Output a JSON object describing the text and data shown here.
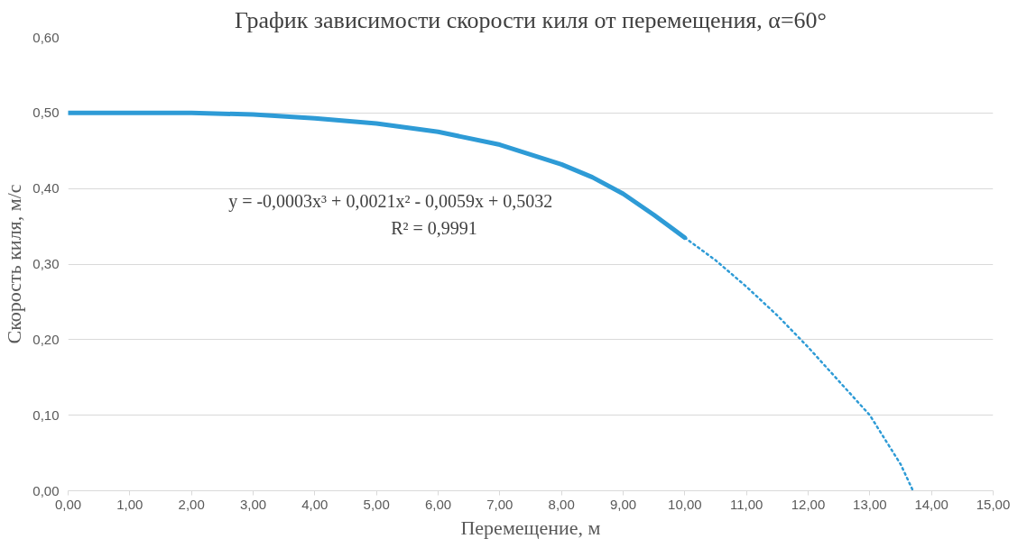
{
  "chart_data": {
    "type": "line",
    "title": "График зависимости скорости киля от перемещения, α=60°",
    "xlabel": "Перемещение, м",
    "ylabel": "Скорость киля, м/с",
    "xlim": [
      0,
      15
    ],
    "ylim": [
      0,
      0.6
    ],
    "xticks": [
      {
        "value": 0,
        "label": "0,00"
      },
      {
        "value": 1,
        "label": "1,00"
      },
      {
        "value": 2,
        "label": "2,00"
      },
      {
        "value": 3,
        "label": "3,00"
      },
      {
        "value": 4,
        "label": "4,00"
      },
      {
        "value": 5,
        "label": "5,00"
      },
      {
        "value": 6,
        "label": "6,00"
      },
      {
        "value": 7,
        "label": "7,00"
      },
      {
        "value": 8,
        "label": "8,00"
      },
      {
        "value": 9,
        "label": "9,00"
      },
      {
        "value": 10,
        "label": "10,00"
      },
      {
        "value": 11,
        "label": "11,00"
      },
      {
        "value": 12,
        "label": "12,00"
      },
      {
        "value": 13,
        "label": "13,00"
      },
      {
        "value": 14,
        "label": "14,00"
      },
      {
        "value": 15,
        "label": "15,00"
      }
    ],
    "yticks": [
      {
        "value": 0,
        "label": "0,00"
      },
      {
        "value": 0.1,
        "label": "0,10"
      },
      {
        "value": 0.2,
        "label": "0,20"
      },
      {
        "value": 0.3,
        "label": "0,30"
      },
      {
        "value": 0.4,
        "label": "0,40"
      },
      {
        "value": 0.5,
        "label": "0,50"
      },
      {
        "value": 0.6,
        "label": "0,60"
      }
    ],
    "grid": "y",
    "series": [
      {
        "color": "#2e9bd6",
        "line_style": "solid",
        "x": [
          0,
          1,
          2,
          3,
          4,
          5,
          6,
          7,
          8,
          8.5,
          9,
          9.5,
          10
        ],
        "values": [
          0.5,
          0.5,
          0.5,
          0.498,
          0.493,
          0.486,
          0.475,
          0.458,
          0.432,
          0.415,
          0.393,
          0.365,
          0.335
        ]
      },
      {
        "color": "#2e9bd6",
        "line_style": "dotted",
        "x": [
          10,
          10.5,
          11,
          11.5,
          12,
          12.5,
          13,
          13.5,
          13.7
        ],
        "values": [
          0.335,
          0.305,
          0.27,
          0.232,
          0.19,
          0.145,
          0.1,
          0.035,
          0
        ]
      }
    ],
    "annotations": [
      "y = -0,0003x³ + 0,0021x² - 0,0059x + 0,5032",
      "R² = 0,9991"
    ]
  }
}
